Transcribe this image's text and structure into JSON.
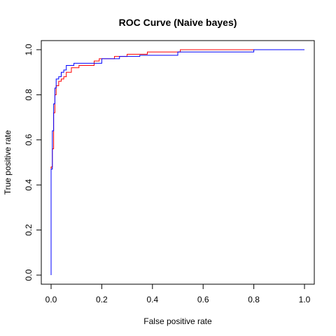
{
  "chart_data": {
    "type": "line",
    "title": "ROC Curve (Naive bayes)",
    "xlabel": "False positive rate",
    "ylabel": "True positive rate",
    "xlim": [
      0,
      1
    ],
    "ylim": [
      0,
      1
    ],
    "xticks": [
      "0.0",
      "0.2",
      "0.4",
      "0.6",
      "0.8",
      "1.0"
    ],
    "yticks": [
      "0.0",
      "0.2",
      "0.4",
      "0.6",
      "0.8",
      "1.0"
    ],
    "grid": false,
    "legend": "none",
    "series": [
      {
        "color": "#ff0000",
        "x": [
          0,
          0,
          0.005,
          0.005,
          0.01,
          0.01,
          0.015,
          0.015,
          0.02,
          0.02,
          0.03,
          0.03,
          0.04,
          0.04,
          0.05,
          0.05,
          0.06,
          0.06,
          0.08,
          0.08,
          0.11,
          0.11,
          0.17,
          0.17,
          0.19,
          0.19,
          0.25,
          0.25,
          0.3,
          0.3,
          0.38,
          0.38,
          0.51,
          0.51,
          1
        ],
        "y": [
          0,
          0.48,
          0.48,
          0.56,
          0.56,
          0.72,
          0.72,
          0.8,
          0.8,
          0.84,
          0.84,
          0.86,
          0.86,
          0.87,
          0.87,
          0.88,
          0.88,
          0.9,
          0.9,
          0.92,
          0.92,
          0.93,
          0.93,
          0.95,
          0.95,
          0.96,
          0.96,
          0.97,
          0.97,
          0.98,
          0.98,
          0.99,
          0.99,
          1.0,
          1.0
        ]
      },
      {
        "color": "#0000ff",
        "x": [
          0,
          0,
          0.005,
          0.005,
          0.01,
          0.01,
          0.015,
          0.015,
          0.02,
          0.02,
          0.03,
          0.03,
          0.04,
          0.04,
          0.05,
          0.05,
          0.06,
          0.06,
          0.09,
          0.09,
          0.2,
          0.2,
          0.27,
          0.27,
          0.35,
          0.35,
          0.5,
          0.5,
          0.8,
          0.8,
          1
        ],
        "y": [
          0,
          0.47,
          0.47,
          0.64,
          0.64,
          0.76,
          0.76,
          0.83,
          0.83,
          0.87,
          0.87,
          0.88,
          0.88,
          0.9,
          0.9,
          0.91,
          0.91,
          0.93,
          0.93,
          0.94,
          0.94,
          0.96,
          0.96,
          0.97,
          0.97,
          0.975,
          0.975,
          0.99,
          0.99,
          1.0,
          1.0
        ]
      }
    ]
  }
}
